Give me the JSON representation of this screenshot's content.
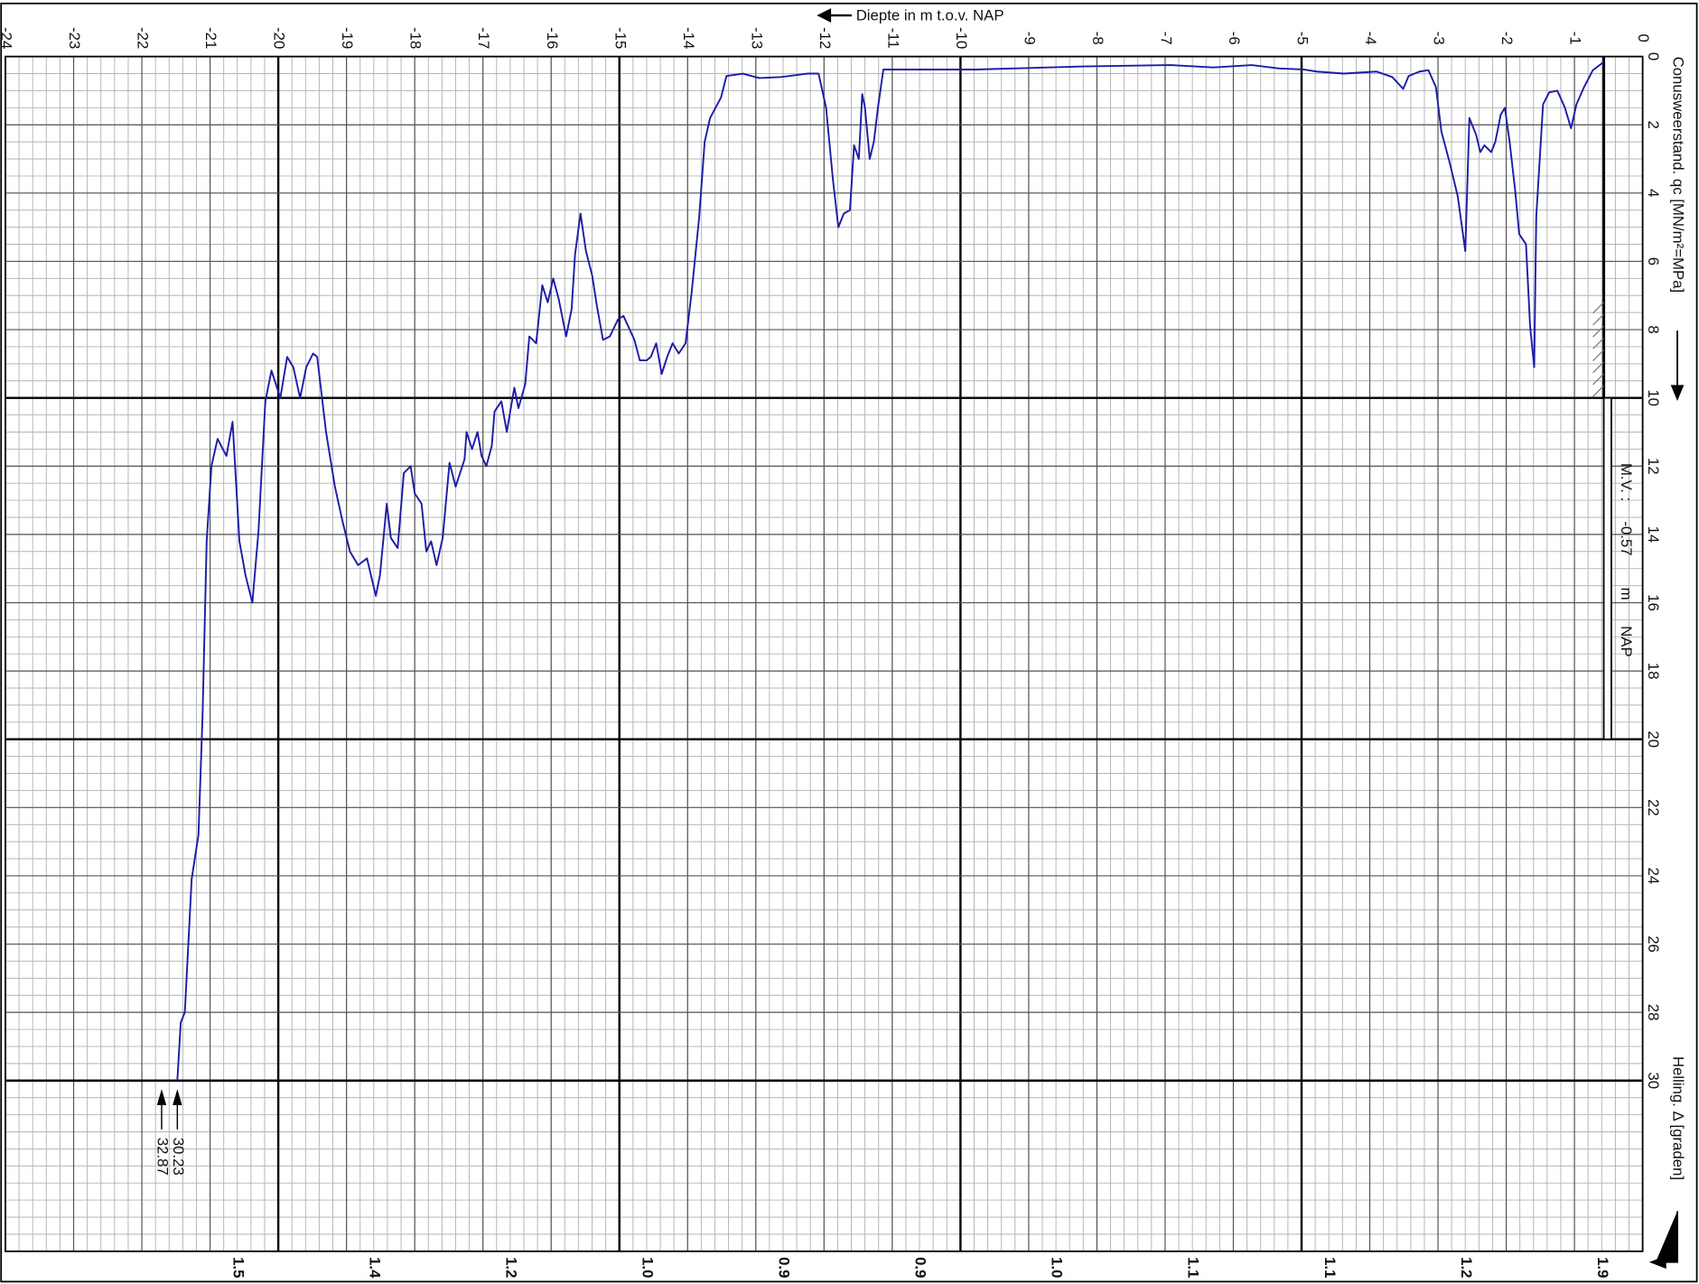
{
  "chart_data": {
    "type": "line",
    "x_label": "Diepte in m t.o.v. NAP",
    "y_label": "Conusweerstand. qc [MN/m²=MPa]",
    "helling_label": "Helling. Δ [graden]",
    "mv_prefix": "M.V. :",
    "mv": -0.57,
    "mv_unit": "m",
    "mv_ref": "NAP",
    "xlim": [
      -24,
      0
    ],
    "ylim": [
      0,
      35
    ],
    "xticks": [
      0,
      -1,
      -2,
      -3,
      -4,
      -5,
      -6,
      -7,
      -8,
      -9,
      -10,
      -11,
      -12,
      -13,
      -14,
      -15,
      -16,
      -17,
      -18,
      -19,
      -20,
      -21,
      -22,
      -23,
      -24
    ],
    "yticks": [
      0,
      2,
      4,
      6,
      8,
      10,
      12,
      14,
      16,
      18,
      20,
      22,
      24,
      26,
      28,
      30
    ],
    "grid": true,
    "series": [
      {
        "color": "#1c1ca8",
        "x": [
          -0.57,
          -0.73,
          -0.86,
          -0.97,
          -1.05,
          -1.14,
          -1.25,
          -1.37,
          -1.46,
          -1.56,
          -1.59,
          -1.65,
          -1.71,
          -1.81,
          -1.87,
          -1.95,
          -2.02,
          -2.08,
          -2.16,
          -2.22,
          -2.32,
          -2.38,
          -2.44,
          -2.54,
          -2.6,
          -2.71,
          -2.83,
          -2.95,
          -3.03,
          -3.14,
          -3.27,
          -3.43,
          -3.51,
          -3.67,
          -3.9,
          -4.38,
          -4.78,
          -4.97,
          -5.33,
          -5.73,
          -6.29,
          -6.92,
          -8.19,
          -9.78,
          -10.57,
          -11.13,
          -11.21,
          -11.27,
          -11.33,
          -11.4,
          -11.44,
          -11.49,
          -11.56,
          -11.62,
          -11.71,
          -11.79,
          -11.87,
          -11.97,
          -12.08,
          -12.24,
          -12.63,
          -12.95,
          -13.19,
          -13.43,
          -13.51,
          -13.67,
          -13.75,
          -13.83,
          -13.94,
          -14.03,
          -14.13,
          -14.22,
          -14.3,
          -14.38,
          -14.46,
          -14.54,
          -14.6,
          -14.7,
          -14.78,
          -14.94,
          -15.02,
          -15.14,
          -15.24,
          -15.33,
          -15.4,
          -15.49,
          -15.57,
          -15.65,
          -15.7,
          -15.78,
          -15.89,
          -15.97,
          -16.05,
          -16.13,
          -16.22,
          -16.32,
          -16.38,
          -16.48,
          -16.54,
          -16.6,
          -16.65,
          -16.73,
          -16.83,
          -16.87,
          -16.95,
          -17.02,
          -17.08,
          -17.16,
          -17.24,
          -17.27,
          -17.4,
          -17.49,
          -17.59,
          -17.68,
          -17.76,
          -17.83,
          -17.9,
          -18.0,
          -18.06,
          -18.16,
          -18.25,
          -18.35,
          -18.41,
          -18.51,
          -18.57,
          -18.7,
          -18.83,
          -18.95,
          -19.06,
          -19.17,
          -19.3,
          -19.43,
          -19.49,
          -19.59,
          -19.68,
          -19.78,
          -19.87,
          -19.97,
          -20.1,
          -20.19,
          -20.29,
          -20.38,
          -20.48,
          -20.57,
          -20.67,
          -20.76,
          -20.89,
          -20.98,
          -21.05,
          -21.11,
          -21.17,
          -21.27,
          -21.37,
          -21.43,
          -21.48
        ],
        "values": [
          0.16,
          0.4,
          0.9,
          1.4,
          2.1,
          1.5,
          1.0,
          1.05,
          1.4,
          4.7,
          9.1,
          7.9,
          5.5,
          5.2,
          3.9,
          2.5,
          1.5,
          1.7,
          2.5,
          2.8,
          2.6,
          2.8,
          2.3,
          1.8,
          5.7,
          4.1,
          3.1,
          2.2,
          0.9,
          0.4,
          0.44,
          0.57,
          0.95,
          0.6,
          0.44,
          0.5,
          0.44,
          0.38,
          0.35,
          0.25,
          0.32,
          0.25,
          0.29,
          0.38,
          0.38,
          0.38,
          1.5,
          2.5,
          3.0,
          1.5,
          1.1,
          3.0,
          2.6,
          4.5,
          4.6,
          5.0,
          3.6,
          1.5,
          0.5,
          0.5,
          0.6,
          0.63,
          0.5,
          0.57,
          1.2,
          1.8,
          2.5,
          4.7,
          6.9,
          8.4,
          8.7,
          8.4,
          8.8,
          9.3,
          8.4,
          8.8,
          8.9,
          8.9,
          8.3,
          7.6,
          7.7,
          8.2,
          8.3,
          7.3,
          6.4,
          5.7,
          4.6,
          5.8,
          7.4,
          8.2,
          7.1,
          6.5,
          7.2,
          6.7,
          8.4,
          8.2,
          9.6,
          10.3,
          9.7,
          10.4,
          11.0,
          10.1,
          10.4,
          11.4,
          12.0,
          11.7,
          11.0,
          11.5,
          11.0,
          11.8,
          12.6,
          11.9,
          14.1,
          14.9,
          14.2,
          14.5,
          13.1,
          12.8,
          12.0,
          12.2,
          14.4,
          14.1,
          13.1,
          15.2,
          15.8,
          14.7,
          14.9,
          14.5,
          13.6,
          12.6,
          11.0,
          8.8,
          8.7,
          9.1,
          10.0,
          9.1,
          8.8,
          10.0,
          9.2,
          10.1,
          13.9,
          16.0,
          15.2,
          14.2,
          10.7,
          11.7,
          11.2,
          12.0,
          14.2,
          19.3,
          22.8,
          24.1,
          28.0,
          28.3,
          30.0
        ]
      }
    ],
    "offscale": [
      {
        "x": -21.48,
        "value": 30.23
      },
      {
        "x": -21.71,
        "value": 32.87
      }
    ],
    "helling": {
      "x": [
        -20.6,
        -18.6,
        -16.6,
        -14.6,
        -12.6,
        -10.6,
        -8.6,
        -6.6,
        -4.6,
        -2.6,
        -0.6
      ],
      "values": [
        1.5,
        1.4,
        1.2,
        1.0,
        0.9,
        0.9,
        1.0,
        1.1,
        1.1,
        1.2,
        1.9
      ],
      "value_labels": [
        "1.5",
        "1.4",
        "1.2",
        "1.0",
        "0.9",
        "0.9",
        "1.0",
        "1.1",
        "1.1",
        "1.2",
        "1.9"
      ]
    }
  }
}
